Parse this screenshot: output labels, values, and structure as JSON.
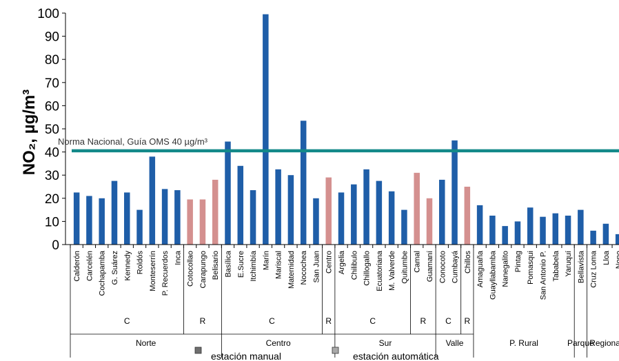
{
  "chart_data": {
    "type": "bar",
    "ylabel": "NO₂, µg/m³",
    "ylim": [
      0,
      100
    ],
    "yticks": [
      0,
      10,
      20,
      30,
      40,
      50,
      60,
      70,
      80,
      90,
      100
    ],
    "categories": [
      "Calderón",
      "Carcelén",
      "Cochapamba",
      "G. Suárez",
      "Kennedy",
      "Roldós",
      "Monteserrín",
      "P. Recuerdos",
      "Inca",
      "Cotocollao",
      "Carapungo",
      "Belisario",
      "Basílica",
      "E.Sucre",
      "Itchimbía",
      "Marín",
      "Mariscal",
      "Maternidad",
      "Nocochea",
      "San Juan",
      "Centro",
      "Argelia",
      "Chilibulo",
      "Chillogallo",
      "Ecuatoriana",
      "M. Valverde",
      "Quitumbe",
      "Camal",
      "Guamaní",
      "Conocoto",
      "Cumbayá",
      "Chillos",
      "Amaguaña",
      "Guayllabamba",
      "Nanegalito",
      "Pintag",
      "Pomasqui",
      "San Antonio P.",
      "Tababela",
      "Yaruquí",
      "Bellavista",
      "Cruz Loma",
      "Lloa",
      "Nono"
    ],
    "values": [
      22.5,
      21,
      20,
      27.5,
      22.5,
      15,
      38,
      24,
      23.5,
      19.5,
      19.5,
      28,
      44.5,
      34,
      23.5,
      99.5,
      32.5,
      30,
      53.5,
      20,
      29,
      22.5,
      26,
      32.5,
      27.5,
      23,
      15,
      31,
      20,
      28,
      45,
      25,
      17,
      12.5,
      8,
      10,
      16,
      12,
      13.5,
      12.5,
      15,
      6,
      9,
      4.5
    ],
    "station_types": [
      "manual",
      "manual",
      "manual",
      "manual",
      "manual",
      "manual",
      "manual",
      "manual",
      "manual",
      "automatic",
      "automatic",
      "automatic",
      "manual",
      "manual",
      "manual",
      "manual",
      "manual",
      "manual",
      "manual",
      "manual",
      "automatic",
      "manual",
      "manual",
      "manual",
      "manual",
      "manual",
      "manual",
      "automatic",
      "automatic",
      "manual",
      "manual",
      "automatic",
      "manual",
      "manual",
      "manual",
      "manual",
      "manual",
      "manual",
      "manual",
      "manual",
      "manual",
      "manual",
      "manual",
      "manual"
    ],
    "reference_line": {
      "value": 40.5,
      "label": "Norma Nacional, Guía OMS 40 µg/m³"
    },
    "sub_groups": [
      {
        "label": "C",
        "start": 0,
        "end": 8
      },
      {
        "label": "R",
        "start": 9,
        "end": 11
      },
      {
        "label": "C",
        "start": 12,
        "end": 19
      },
      {
        "label": "R",
        "start": 20,
        "end": 20
      },
      {
        "label": "C",
        "start": 21,
        "end": 26
      },
      {
        "label": "R",
        "start": 27,
        "end": 28
      },
      {
        "label": "C",
        "start": 29,
        "end": 30
      },
      {
        "label": "R",
        "start": 31,
        "end": 31
      }
    ],
    "groups": [
      {
        "label": "Norte",
        "start": 0,
        "end": 11
      },
      {
        "label": "Centro",
        "start": 12,
        "end": 20
      },
      {
        "label": "Sur",
        "start": 21,
        "end": 28
      },
      {
        "label": "Valle",
        "start": 29,
        "end": 31
      },
      {
        "label": "P. Rural",
        "start": 32,
        "end": 39
      },
      {
        "label": "Parque",
        "start": 40,
        "end": 40
      },
      {
        "label": "Regional",
        "start": 41,
        "end": 43
      }
    ],
    "legend": [
      {
        "label": "estación manual",
        "color": "#6f6f6f"
      },
      {
        "label": "estación automática",
        "color": "#a9a9a9"
      }
    ],
    "colors": {
      "manual": "#1f5ea8",
      "automatic": "#d4908f",
      "reference_line": "#138989"
    }
  }
}
